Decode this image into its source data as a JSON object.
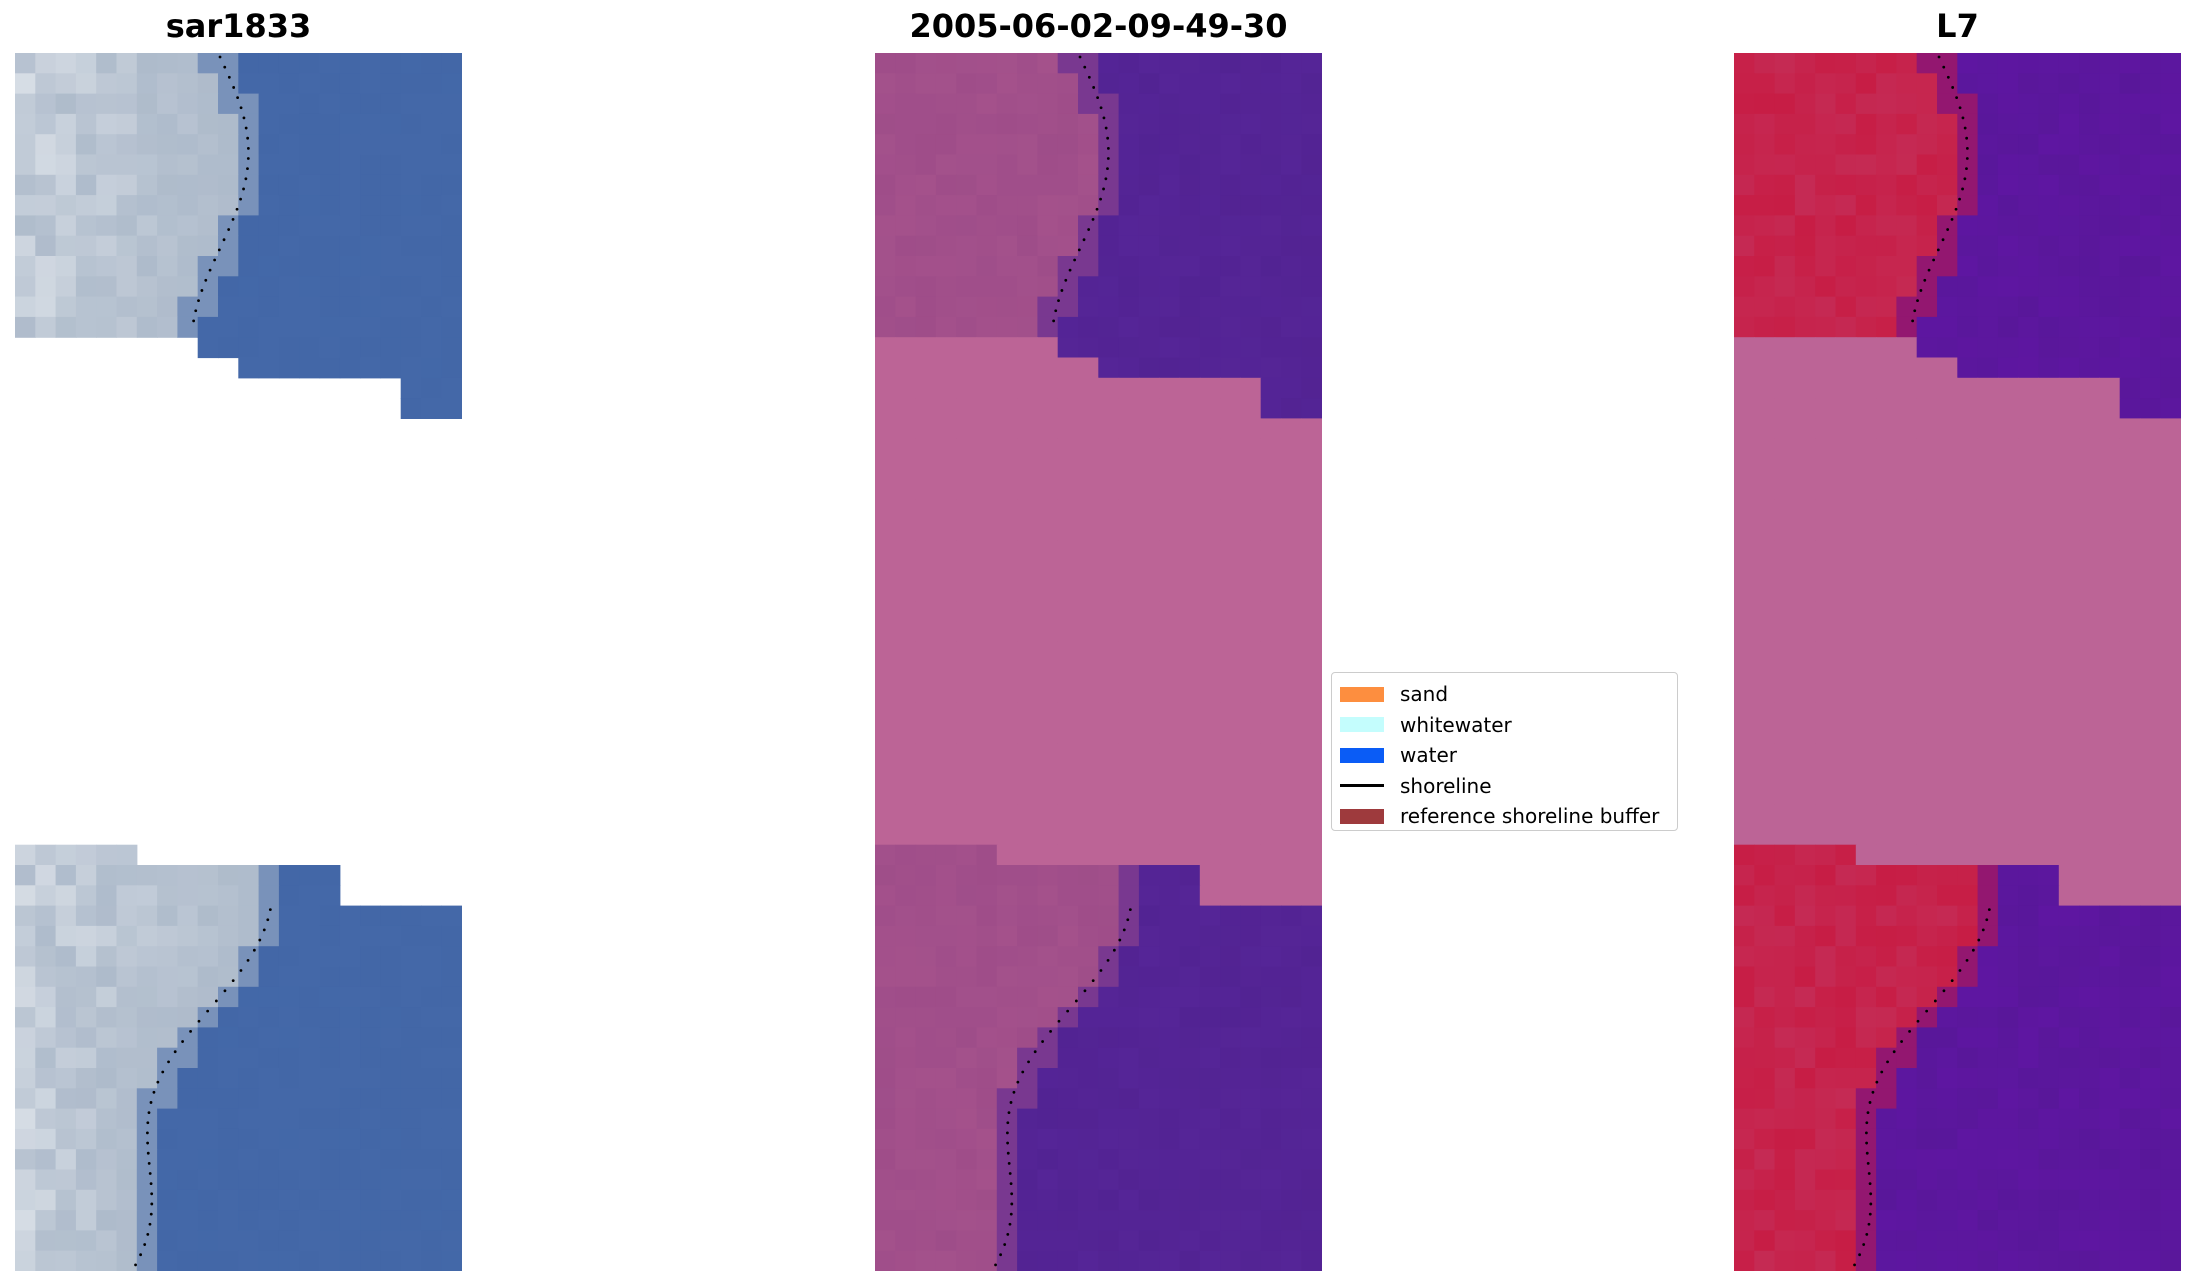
{
  "panels": [
    {
      "title": "sar1833"
    },
    {
      "title": "2005-06-02-09-49-30"
    },
    {
      "title": "L7"
    }
  ],
  "legend": {
    "items": [
      {
        "label": "sand",
        "color": "#fd8e3f",
        "kind": "patch"
      },
      {
        "label": "whitewater",
        "color": "#c4fdfd",
        "kind": "patch"
      },
      {
        "label": "water",
        "color": "#0a5cf6",
        "kind": "patch"
      },
      {
        "label": "shoreline",
        "color": "#000000",
        "kind": "line"
      },
      {
        "label": "reference shoreline buffer",
        "color": "#9e3a3d",
        "kind": "patch"
      }
    ]
  },
  "colors": {
    "water_rgb": "#4468a8",
    "land_rgb": "#aebbcb",
    "ratio_water": "#552597",
    "ratio_land": "#9c4b88",
    "ratio_nodata": "#bc6496",
    "ndwi_water": "#5e16a1",
    "ndwi_land": "#c8173e",
    "ndwi_nodata": "#bc6496"
  }
}
